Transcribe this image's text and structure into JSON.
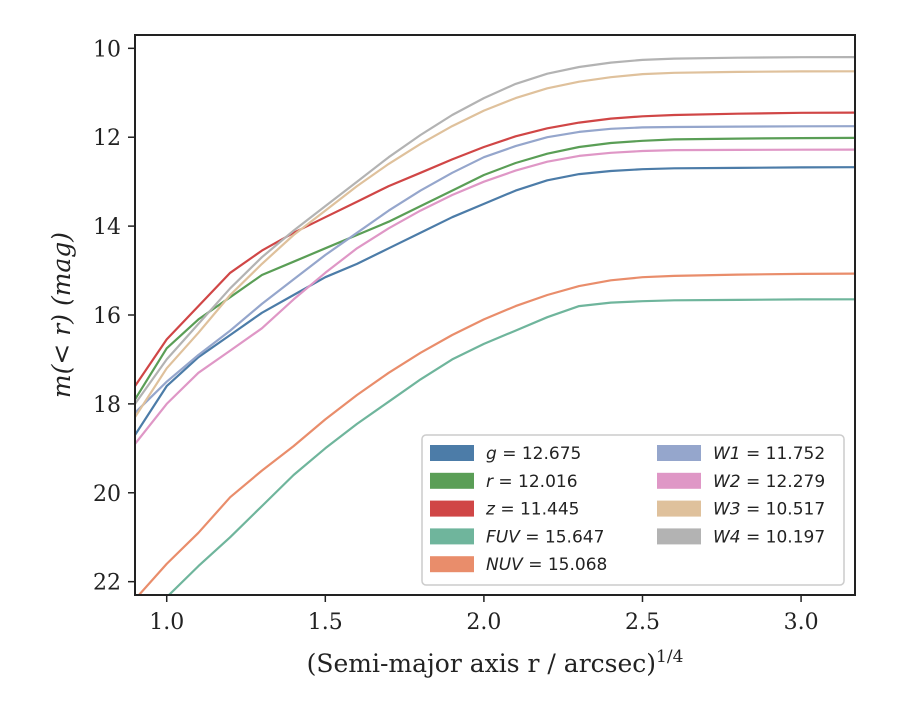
{
  "chart_data": {
    "type": "line",
    "title": "",
    "xlabel": "(Semi-major axis r / arcsec)",
    "xlabel_superscript": "1/4",
    "ylabel": "m(< r) (mag)",
    "xlim": [
      0.9,
      3.17
    ],
    "ylim": [
      22.3,
      9.7
    ],
    "y_inverted": true,
    "grid": false,
    "legend_position": "lower-right",
    "legend_columns": 2,
    "x_ticks": [
      1.0,
      1.5,
      2.0,
      2.5,
      3.0
    ],
    "x_tick_labels": [
      "1.0",
      "1.5",
      "2.0",
      "2.5",
      "3.0"
    ],
    "y_ticks": [
      10,
      12,
      14,
      16,
      18,
      20,
      22
    ],
    "y_tick_labels": [
      "10",
      "12",
      "14",
      "16",
      "18",
      "20",
      "22"
    ],
    "series": [
      {
        "name": "g = 12.675",
        "band": "g",
        "value": "12.675",
        "color": "#4c7ca8",
        "x": [
          0.9,
          1.0,
          1.1,
          1.2,
          1.3,
          1.4,
          1.5,
          1.6,
          1.7,
          1.8,
          1.9,
          2.0,
          2.1,
          2.2,
          2.3,
          2.4,
          2.5,
          2.6,
          2.8,
          3.0,
          3.17
        ],
        "y": [
          18.7,
          17.6,
          16.95,
          16.45,
          15.95,
          15.55,
          15.15,
          14.85,
          14.5,
          14.15,
          13.8,
          13.5,
          13.2,
          12.97,
          12.83,
          12.76,
          12.72,
          12.7,
          12.69,
          12.68,
          12.675
        ]
      },
      {
        "name": "r = 12.016",
        "band": "r",
        "value": "12.016",
        "color": "#5a9e56",
        "x": [
          0.9,
          1.0,
          1.1,
          1.2,
          1.3,
          1.4,
          1.5,
          1.6,
          1.7,
          1.8,
          1.9,
          2.0,
          2.1,
          2.2,
          2.3,
          2.4,
          2.5,
          2.6,
          2.8,
          3.0,
          3.17
        ],
        "y": [
          17.9,
          16.75,
          16.1,
          15.6,
          15.1,
          14.8,
          14.5,
          14.2,
          13.9,
          13.55,
          13.2,
          12.85,
          12.58,
          12.37,
          12.22,
          12.13,
          12.08,
          12.05,
          12.03,
          12.02,
          12.016
        ]
      },
      {
        "name": "z = 11.445",
        "band": "z",
        "value": "11.445",
        "color": "#d04646",
        "x": [
          0.9,
          1.0,
          1.1,
          1.2,
          1.3,
          1.4,
          1.5,
          1.6,
          1.7,
          1.8,
          1.9,
          2.0,
          2.1,
          2.2,
          2.3,
          2.4,
          2.5,
          2.6,
          2.8,
          3.0,
          3.17
        ],
        "y": [
          17.6,
          16.55,
          15.8,
          15.05,
          14.55,
          14.15,
          13.8,
          13.45,
          13.1,
          12.8,
          12.5,
          12.22,
          11.98,
          11.8,
          11.67,
          11.58,
          11.53,
          11.5,
          11.47,
          11.45,
          11.445
        ]
      },
      {
        "name": "FUV = 15.647",
        "band": "FUV",
        "value": "15.647",
        "color": "#6fb59c",
        "x": [
          0.9,
          1.0,
          1.1,
          1.2,
          1.3,
          1.4,
          1.5,
          1.6,
          1.7,
          1.8,
          1.9,
          2.0,
          2.1,
          2.2,
          2.3,
          2.4,
          2.5,
          2.6,
          2.8,
          3.0,
          3.17
        ],
        "y": [
          23.1,
          22.35,
          21.65,
          21.0,
          20.3,
          19.6,
          19.0,
          18.45,
          17.95,
          17.45,
          17.0,
          16.65,
          16.35,
          16.05,
          15.8,
          15.72,
          15.69,
          15.67,
          15.66,
          15.65,
          15.647
        ]
      },
      {
        "name": "NUV = 15.068",
        "band": "NUV",
        "value": "15.068",
        "color": "#e98d6b",
        "x": [
          0.9,
          1.0,
          1.1,
          1.2,
          1.3,
          1.4,
          1.5,
          1.6,
          1.7,
          1.8,
          1.9,
          2.0,
          2.1,
          2.2,
          2.3,
          2.4,
          2.5,
          2.6,
          2.8,
          3.0,
          3.17
        ],
        "y": [
          22.4,
          21.6,
          20.9,
          20.1,
          19.5,
          18.95,
          18.35,
          17.8,
          17.3,
          16.85,
          16.45,
          16.1,
          15.8,
          15.55,
          15.35,
          15.22,
          15.15,
          15.12,
          15.09,
          15.075,
          15.068
        ]
      },
      {
        "name": "W1 = 11.752",
        "band": "W1",
        "value": "11.752",
        "color": "#95a6cc",
        "x": [
          0.9,
          1.0,
          1.1,
          1.2,
          1.3,
          1.4,
          1.5,
          1.6,
          1.7,
          1.8,
          1.9,
          2.0,
          2.1,
          2.2,
          2.3,
          2.4,
          2.5,
          2.6,
          2.8,
          3.0,
          3.17
        ],
        "y": [
          18.2,
          17.5,
          16.9,
          16.35,
          15.75,
          15.2,
          14.65,
          14.15,
          13.65,
          13.2,
          12.8,
          12.45,
          12.2,
          12.0,
          11.88,
          11.81,
          11.78,
          11.77,
          11.76,
          11.755,
          11.752
        ]
      },
      {
        "name": "W2 = 12.279",
        "band": "W2",
        "value": "12.279",
        "color": "#df97c6",
        "x": [
          0.9,
          1.0,
          1.1,
          1.2,
          1.3,
          1.4,
          1.5,
          1.6,
          1.7,
          1.8,
          1.9,
          2.0,
          2.1,
          2.2,
          2.3,
          2.4,
          2.5,
          2.6,
          2.8,
          3.0,
          3.17
        ],
        "y": [
          18.9,
          18.0,
          17.3,
          16.8,
          16.3,
          15.65,
          15.05,
          14.5,
          14.05,
          13.65,
          13.3,
          13.0,
          12.75,
          12.55,
          12.42,
          12.35,
          12.31,
          12.29,
          12.285,
          12.28,
          12.279
        ]
      },
      {
        "name": "W3 = 10.517",
        "band": "W3",
        "value": "10.517",
        "color": "#dfc19c",
        "x": [
          0.9,
          1.0,
          1.1,
          1.2,
          1.3,
          1.4,
          1.5,
          1.6,
          1.7,
          1.8,
          1.9,
          2.0,
          2.1,
          2.2,
          2.3,
          2.4,
          2.5,
          2.6,
          2.8,
          3.0,
          3.17
        ],
        "y": [
          18.3,
          17.2,
          16.4,
          15.55,
          14.85,
          14.2,
          13.65,
          13.1,
          12.6,
          12.15,
          11.75,
          11.4,
          11.12,
          10.9,
          10.75,
          10.65,
          10.58,
          10.55,
          10.53,
          10.52,
          10.517
        ]
      },
      {
        "name": "W4 = 10.197",
        "band": "W4",
        "value": "10.197",
        "color": "#b3b3b3",
        "x": [
          0.9,
          1.0,
          1.1,
          1.2,
          1.3,
          1.4,
          1.5,
          1.6,
          1.7,
          1.8,
          1.9,
          2.0,
          2.1,
          2.2,
          2.3,
          2.4,
          2.5,
          2.6,
          2.8,
          3.0,
          3.17
        ],
        "y": [
          18.0,
          17.0,
          16.2,
          15.4,
          14.7,
          14.1,
          13.55,
          13.0,
          12.45,
          11.95,
          11.5,
          11.12,
          10.8,
          10.57,
          10.42,
          10.32,
          10.26,
          10.23,
          10.21,
          10.2,
          10.197
        ]
      }
    ]
  }
}
